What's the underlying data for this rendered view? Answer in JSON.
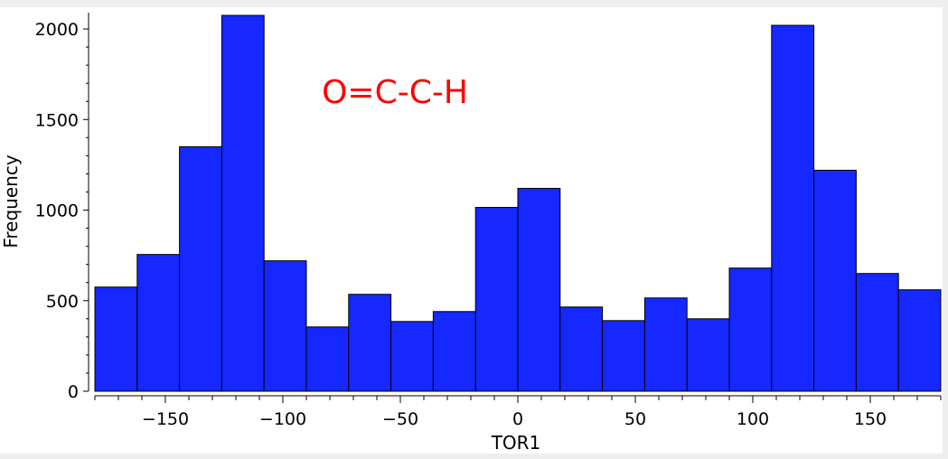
{
  "chart_data": {
    "type": "bar",
    "subtype": "histogram",
    "annotation": "O=C-C-H",
    "xlabel": "TOR1",
    "ylabel": "Frequency",
    "xlim": [
      -180,
      180
    ],
    "ylim": [
      0,
      2080
    ],
    "x_ticks": [
      -150,
      -100,
      -50,
      0,
      50,
      100,
      150
    ],
    "x_tick_labels": [
      "−150",
      "−100",
      "−50",
      "0",
      "50",
      "100",
      "150"
    ],
    "y_ticks": [
      0,
      500,
      1000,
      1500,
      2000
    ],
    "y_tick_labels": [
      "0",
      "500",
      "1000",
      "1500",
      "2000"
    ],
    "bin_edges": [
      -180,
      -162,
      -144,
      -126,
      -108,
      -90,
      -72,
      -54,
      -36,
      -18,
      0,
      18,
      36,
      54,
      72,
      90,
      108,
      126,
      144,
      162,
      180
    ],
    "values": [
      575,
      755,
      1350,
      2075,
      720,
      355,
      535,
      385,
      440,
      1015,
      1120,
      465,
      390,
      515,
      400,
      680,
      2020,
      1220,
      650,
      560
    ],
    "bar_color": "#1428ff",
    "annotation_color": "#ff0000",
    "grid": false,
    "legend": "none"
  }
}
